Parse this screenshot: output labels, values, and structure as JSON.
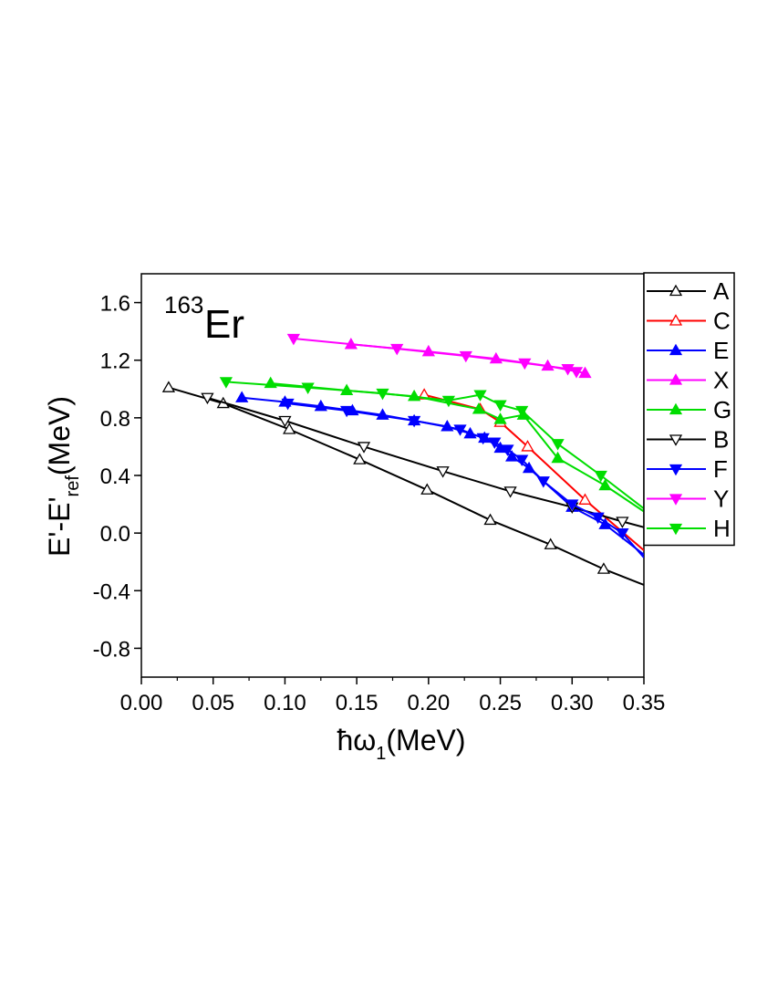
{
  "chart_data": {
    "type": "line",
    "annotation": {
      "mass_number": "163",
      "element": "Er"
    },
    "xlabel": {
      "main": "ħω",
      "sub": "1",
      "unit": "(MeV)"
    },
    "ylabel": {
      "pre": "E'-E'",
      "sub": "ref",
      "unit": "(MeV)"
    },
    "xlim": [
      0.0,
      0.35
    ],
    "ylim": [
      -1.0,
      1.8
    ],
    "x_ticks": [
      0.0,
      0.05,
      0.1,
      0.15,
      0.2,
      0.25,
      0.3,
      0.35
    ],
    "x_tick_labels": [
      "0.00",
      "0.05",
      "0.10",
      "0.15",
      "0.20",
      "0.25",
      "0.30",
      "0.35"
    ],
    "y_ticks": [
      -0.8,
      -0.4,
      0.0,
      0.4,
      0.8,
      1.2,
      1.6
    ],
    "y_tick_labels": [
      "-0.8",
      "-0.4",
      "0.0",
      "0.4",
      "0.8",
      "1.2",
      "1.6"
    ],
    "legend_position": "right, outside",
    "series": [
      {
        "name": "A",
        "color": "#000000",
        "marker": "triangle-up",
        "filled": false,
        "points": [
          [
            0.019,
            1.01
          ],
          [
            0.057,
            0.9
          ],
          [
            0.103,
            0.72
          ],
          [
            0.152,
            0.51
          ],
          [
            0.199,
            0.3
          ],
          [
            0.243,
            0.09
          ],
          [
            0.285,
            -0.08
          ],
          [
            0.322,
            -0.25
          ],
          [
            0.35,
            -0.36
          ]
        ]
      },
      {
        "name": "C",
        "color": "#ff0000",
        "marker": "triangle-up",
        "filled": false,
        "points": [
          [
            0.197,
            0.96
          ],
          [
            0.236,
            0.86
          ],
          [
            0.25,
            0.77
          ],
          [
            0.269,
            0.6
          ],
          [
            0.309,
            0.23
          ],
          [
            0.35,
            -0.12
          ]
        ]
      },
      {
        "name": "E",
        "color": "#0000ff",
        "marker": "triangle-up",
        "filled": true,
        "points": [
          [
            0.07,
            0.94
          ],
          [
            0.1,
            0.91
          ],
          [
            0.125,
            0.88
          ],
          [
            0.147,
            0.85
          ],
          [
            0.168,
            0.82
          ],
          [
            0.19,
            0.78
          ],
          [
            0.213,
            0.74
          ],
          [
            0.229,
            0.69
          ],
          [
            0.239,
            0.66
          ],
          [
            0.25,
            0.59
          ],
          [
            0.258,
            0.53
          ],
          [
            0.27,
            0.45
          ],
          [
            0.3,
            0.18
          ],
          [
            0.323,
            0.06
          ],
          [
            0.35,
            -0.15
          ]
        ]
      },
      {
        "name": "X",
        "color": "#ff00ff",
        "marker": "triangle-up",
        "filled": true,
        "points": [
          [
            0.146,
            1.31
          ],
          [
            0.2,
            1.26
          ],
          [
            0.247,
            1.21
          ],
          [
            0.283,
            1.16
          ],
          [
            0.309,
            1.11
          ]
        ]
      },
      {
        "name": "G",
        "color": "#00dd00",
        "marker": "triangle-up",
        "filled": true,
        "points": [
          [
            0.09,
            1.04
          ],
          [
            0.143,
            0.99
          ],
          [
            0.19,
            0.95
          ],
          [
            0.235,
            0.86
          ],
          [
            0.25,
            0.79
          ],
          [
            0.266,
            0.82
          ],
          [
            0.29,
            0.52
          ],
          [
            0.323,
            0.33
          ],
          [
            0.35,
            0.15
          ]
        ]
      },
      {
        "name": "B",
        "color": "#000000",
        "marker": "triangle-down",
        "filled": false,
        "points": [
          [
            0.046,
            0.94
          ],
          [
            0.1,
            0.78
          ],
          [
            0.155,
            0.6
          ],
          [
            0.21,
            0.43
          ],
          [
            0.257,
            0.29
          ],
          [
            0.3,
            0.18
          ],
          [
            0.335,
            0.08
          ],
          [
            0.35,
            0.04
          ]
        ]
      },
      {
        "name": "F",
        "color": "#0000ff",
        "marker": "triangle-down",
        "filled": true,
        "points": [
          [
            0.102,
            0.9
          ],
          [
            0.143,
            0.85
          ],
          [
            0.19,
            0.78
          ],
          [
            0.222,
            0.72
          ],
          [
            0.238,
            0.66
          ],
          [
            0.246,
            0.63
          ],
          [
            0.255,
            0.58
          ],
          [
            0.265,
            0.51
          ],
          [
            0.28,
            0.36
          ],
          [
            0.3,
            0.2
          ],
          [
            0.318,
            0.11
          ],
          [
            0.335,
            0.0
          ],
          [
            0.35,
            -0.17
          ]
        ]
      },
      {
        "name": "Y",
        "color": "#ff00ff",
        "marker": "triangle-down",
        "filled": true,
        "points": [
          [
            0.106,
            1.35
          ],
          [
            0.178,
            1.28
          ],
          [
            0.226,
            1.23
          ],
          [
            0.267,
            1.18
          ],
          [
            0.297,
            1.14
          ],
          [
            0.303,
            1.12
          ]
        ]
      },
      {
        "name": "H",
        "color": "#00dd00",
        "marker": "triangle-down",
        "filled": true,
        "points": [
          [
            0.059,
            1.05
          ],
          [
            0.116,
            1.01
          ],
          [
            0.168,
            0.97
          ],
          [
            0.214,
            0.92
          ],
          [
            0.236,
            0.96
          ],
          [
            0.25,
            0.89
          ],
          [
            0.265,
            0.85
          ],
          [
            0.29,
            0.62
          ],
          [
            0.32,
            0.4
          ],
          [
            0.35,
            0.17
          ]
        ]
      }
    ]
  }
}
